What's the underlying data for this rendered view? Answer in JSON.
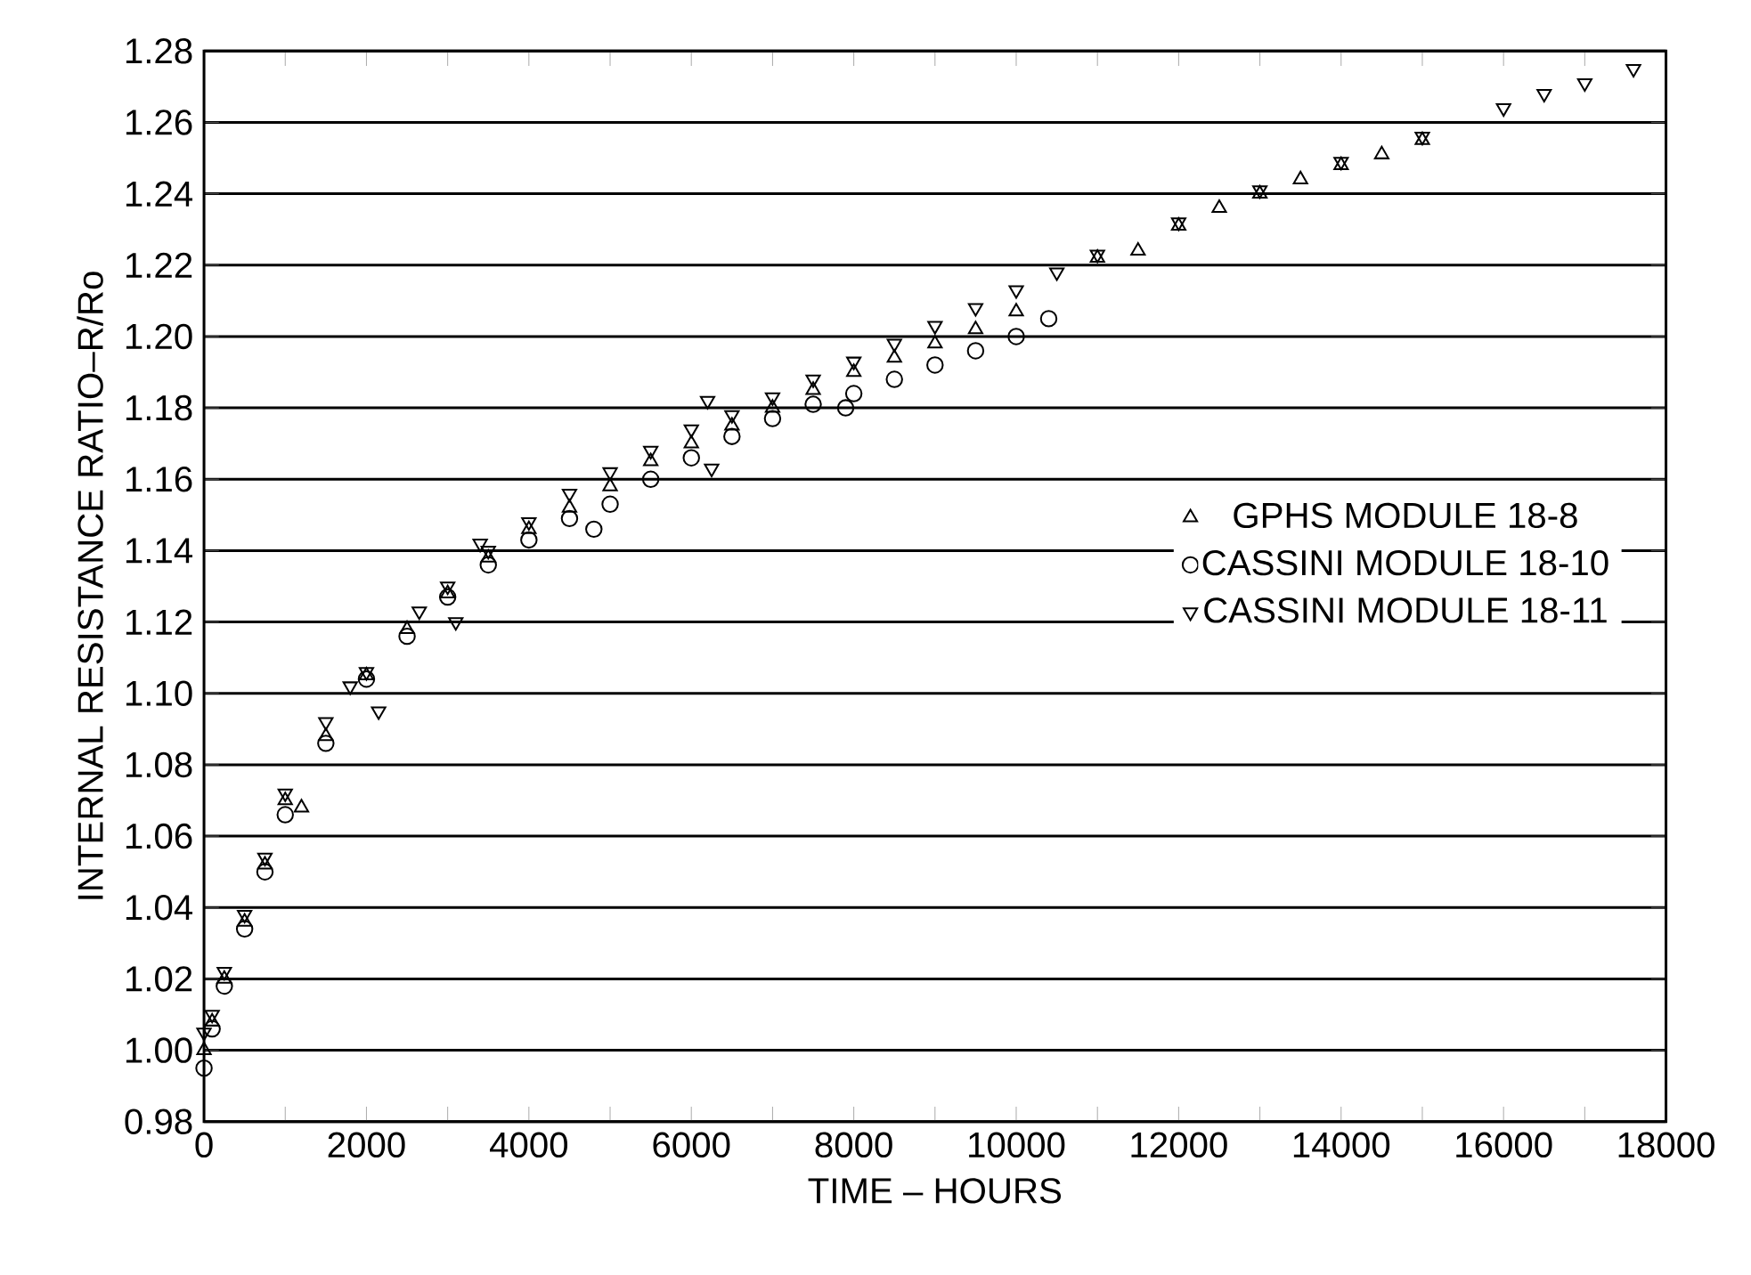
{
  "chart_data": {
    "type": "scatter",
    "xlabel": "TIME – HOURS",
    "ylabel": "INTERNAL RESISTANCE RATIO–R/Ro",
    "xlim": [
      0,
      18000
    ],
    "ylim": [
      0.98,
      1.28
    ],
    "xticks": [
      0,
      {
        "value": 1000,
        "label": null
      },
      2000,
      {
        "value": 3000,
        "label": null
      },
      4000,
      {
        "value": 5000,
        "label": null
      },
      6000,
      {
        "value": 7000,
        "label": null
      },
      8000,
      {
        "value": 9000,
        "label": null
      },
      10000,
      {
        "value": 11000,
        "label": null
      },
      12000,
      {
        "value": 13000,
        "label": null
      },
      14000,
      {
        "value": 15000,
        "label": null
      },
      16000,
      {
        "value": 17000,
        "label": null
      },
      18000
    ],
    "yticks": [
      {
        "value": 0.98,
        "label": "0.98"
      },
      {
        "value": 1.0,
        "label": "1.00"
      },
      {
        "value": 1.02,
        "label": "1.02"
      },
      {
        "value": 1.04,
        "label": "1.04"
      },
      {
        "value": 1.06,
        "label": "1.06"
      },
      {
        "value": 1.08,
        "label": "1.08"
      },
      {
        "value": 1.1,
        "label": "1.10"
      },
      {
        "value": 1.12,
        "label": "1.12"
      },
      {
        "value": 1.14,
        "label": "1.14"
      },
      {
        "value": 1.16,
        "label": "1.16"
      },
      {
        "value": 1.18,
        "label": "1.18"
      },
      {
        "value": 1.2,
        "label": "1.20"
      },
      {
        "value": 1.22,
        "label": "1.22"
      },
      {
        "value": 1.24,
        "label": "1.24"
      },
      {
        "value": 1.26,
        "label": "1.26"
      },
      {
        "value": 1.28,
        "label": "1.28"
      }
    ],
    "grid": "y",
    "legend": "right",
    "series": [
      {
        "name": "GPHS MODULE 18-8",
        "color": "#000000",
        "marker": "triangle",
        "x": [
          0,
          100,
          250,
          500,
          750,
          1000,
          1200,
          1500,
          2000,
          2500,
          3000,
          3500,
          4000,
          4500,
          5000,
          5500,
          6000,
          6500,
          7000,
          7500,
          8000,
          8500,
          9000,
          9500,
          10000,
          11000,
          11500,
          12000,
          12500,
          13000,
          13500,
          14000,
          14500,
          15000
        ],
        "values": [
          1.0,
          1.008,
          1.02,
          1.036,
          1.052,
          1.07,
          1.068,
          1.088,
          1.105,
          1.118,
          1.128,
          1.138,
          1.146,
          1.152,
          1.158,
          1.165,
          1.17,
          1.175,
          1.18,
          1.185,
          1.19,
          1.194,
          1.198,
          1.202,
          1.207,
          1.222,
          1.224,
          1.231,
          1.236,
          1.24,
          1.244,
          1.248,
          1.251,
          1.255
        ]
      },
      {
        "name": "CASSINI MODULE 18-10",
        "color": "#000000",
        "marker": "circle",
        "x": [
          0,
          100,
          250,
          500,
          750,
          1000,
          1500,
          2000,
          2500,
          3000,
          3500,
          4000,
          4500,
          4800,
          5000,
          5500,
          6000,
          6500,
          7000,
          7500,
          7900,
          8000,
          8500,
          9000,
          9500,
          10000,
          10400
        ],
        "values": [
          0.995,
          1.006,
          1.018,
          1.034,
          1.05,
          1.066,
          1.086,
          1.104,
          1.116,
          1.127,
          1.136,
          1.143,
          1.149,
          1.146,
          1.153,
          1.16,
          1.166,
          1.172,
          1.177,
          1.181,
          1.18,
          1.184,
          1.188,
          1.192,
          1.196,
          1.2,
          1.205
        ]
      },
      {
        "name": "CASSINI MODULE 18-11",
        "color": "#000000",
        "marker": "triangle-down",
        "x": [
          0,
          100,
          250,
          500,
          750,
          1000,
          1500,
          1800,
          2000,
          2150,
          2650,
          3000,
          3100,
          3400,
          3500,
          4000,
          4500,
          5000,
          5500,
          6000,
          6200,
          6250,
          6500,
          7000,
          7500,
          8000,
          8500,
          9000,
          9500,
          10000,
          10500,
          11000,
          12000,
          13000,
          14000,
          15000,
          16000,
          16500,
          17000,
          17600
        ],
        "values": [
          1.005,
          1.01,
          1.022,
          1.038,
          1.054,
          1.072,
          1.092,
          1.102,
          1.106,
          1.095,
          1.123,
          1.13,
          1.12,
          1.142,
          1.14,
          1.148,
          1.156,
          1.162,
          1.168,
          1.174,
          1.182,
          1.163,
          1.178,
          1.183,
          1.188,
          1.193,
          1.198,
          1.203,
          1.208,
          1.213,
          1.218,
          1.223,
          1.232,
          1.241,
          1.249,
          1.256,
          1.264,
          1.268,
          1.271,
          1.275
        ]
      }
    ]
  }
}
